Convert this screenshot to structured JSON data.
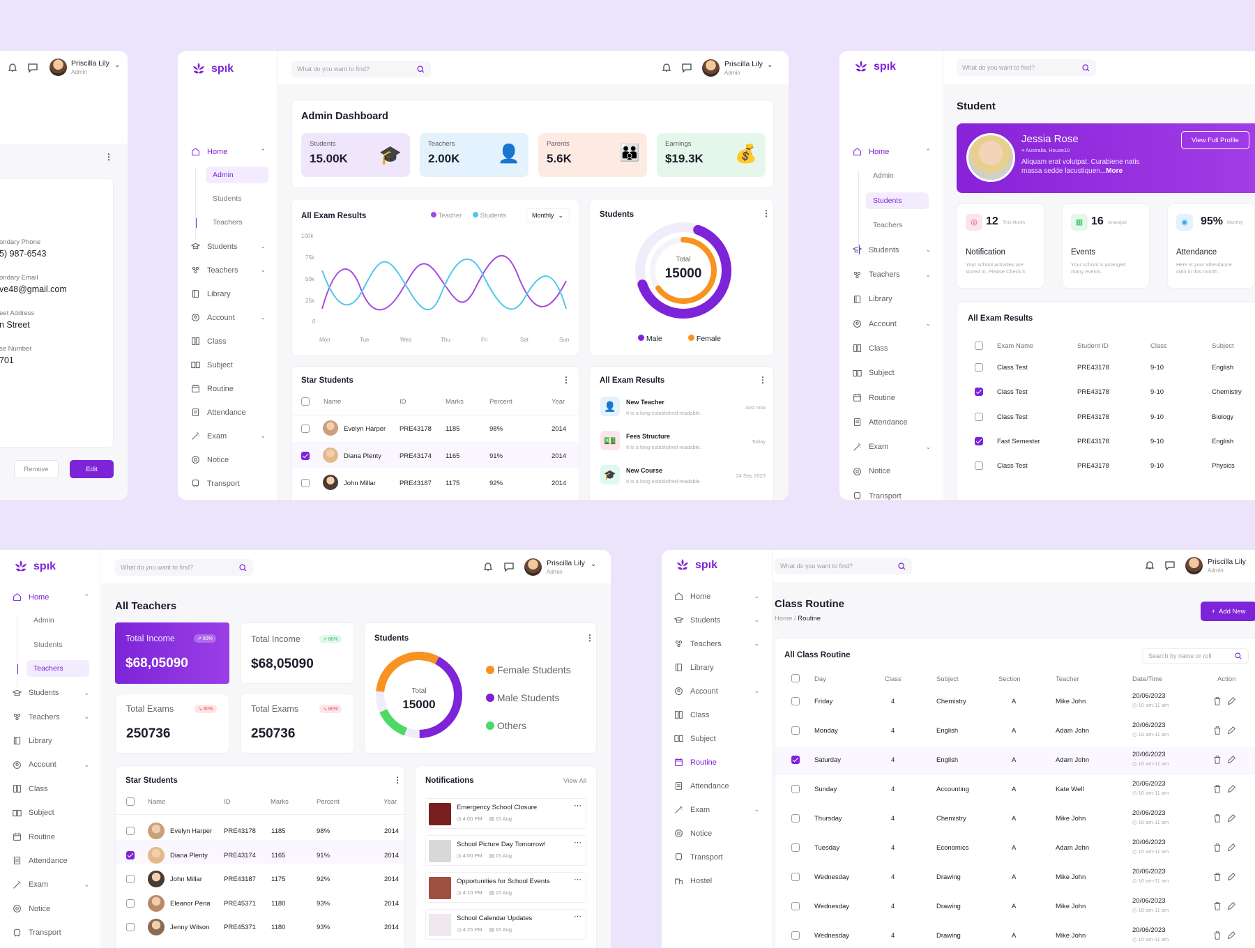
{
  "brand": "spık",
  "search_placeholder": "What do you want to find?",
  "user": {
    "name": "Priscilla Lily",
    "role": "Admin"
  },
  "nav": {
    "home": "Home",
    "admin": "Admin",
    "students": "Students",
    "teachers": "Teachers",
    "library": "Library",
    "account": "Account",
    "class": "Class",
    "subject": "Subject",
    "routine": "Routine",
    "attendance": "Attendance",
    "exam": "Exam",
    "notice": "Notice",
    "transport": "Transport",
    "hostel": "Hostel"
  },
  "profile_partial": {
    "phone_label": "ondary Phone",
    "phone": "5) 987-6543",
    "email_label": "ondary Email",
    "email": "ve48@gmail.com",
    "street_label": "eet Address",
    "street": "n Street",
    "house_label": "se Number",
    "house": "701",
    "remove": "Remove",
    "edit": "Edit"
  },
  "admin_dashboard": {
    "title": "Admin Dashboard",
    "stats": [
      {
        "label": "Students",
        "value": "15.00K",
        "color": "#efe6fb"
      },
      {
        "label": "Teachers",
        "value": "2.00K",
        "color": "#e3f2fc"
      },
      {
        "label": "Parents",
        "value": "5.6K",
        "color": "#fdebe3"
      },
      {
        "label": "Earnings",
        "value": "$19.3K",
        "color": "#e5f7ea"
      }
    ],
    "exam_results": {
      "title": "All Exam Results",
      "legend": [
        "Teacher",
        "Students"
      ],
      "period": "Monthly",
      "y_ticks": [
        "100k",
        "75k",
        "50k",
        "25k",
        "0"
      ],
      "x_ticks": [
        "Mon",
        "Tue",
        "Wed",
        "Thu",
        "Fri",
        "Sat",
        "Sun"
      ]
    },
    "students_donut": {
      "title": "Students",
      "total_label": "Total",
      "total": "15000",
      "legend": [
        "Male",
        "Female"
      ]
    },
    "star_students": {
      "title": "Star Students",
      "headers": [
        "Name",
        "ID",
        "Marks",
        "Percent",
        "Year"
      ],
      "rows": [
        {
          "name": "Evelyn Harper",
          "id": "PRE43178",
          "marks": "1185",
          "percent": "98%",
          "year": "2014",
          "checked": false
        },
        {
          "name": "Diana Plenty",
          "id": "PRE43174",
          "marks": "1165",
          "percent": "91%",
          "year": "2014",
          "checked": true
        },
        {
          "name": "John Millar",
          "id": "PRE43187",
          "marks": "1175",
          "percent": "92%",
          "year": "2014",
          "checked": false
        }
      ]
    },
    "notifications": {
      "title": "All Exam Results",
      "items": [
        {
          "title": "New Teacher",
          "sub": "It is a long established readable.",
          "time": "Just now"
        },
        {
          "title": "Fees Structure",
          "sub": "It is a long established readable.",
          "time": "Today"
        },
        {
          "title": "New Course",
          "sub": "It is a long established readable.",
          "time": "24 Sep 2023"
        }
      ]
    }
  },
  "student_page": {
    "title": "Student",
    "hero": {
      "name": "Jessia Rose",
      "location": "Australia, House10",
      "bio1": "Aliquam erat volutpat. Curabiene natis",
      "bio2": "massa sedde lacustiquen...",
      "more": "More",
      "button": "View Full Profile"
    },
    "cards": [
      {
        "num": "12",
        "tag": "This Month",
        "title": "Notification",
        "desc1": "Your school activities are",
        "desc2": "stored in. Please Check it."
      },
      {
        "num": "16",
        "tag": "Arranged",
        "title": "Events",
        "desc1": "Your school is arranged",
        "desc2": "many events."
      },
      {
        "num": "95%",
        "tag": "Monthly",
        "title": "Attendance",
        "desc1": "Here is your attendance",
        "desc2": "ratio in this month."
      }
    ],
    "results": {
      "title": "All Exam Results",
      "headers": [
        "Exam Name",
        "Student ID",
        "Class",
        "Subject"
      ],
      "rows": [
        {
          "exam": "Class Test",
          "id": "PRE43178",
          "class": "9-10",
          "subject": "English",
          "checked": false
        },
        {
          "exam": "Class Test",
          "id": "PRE43178",
          "class": "9-10",
          "subject": "Chemistry",
          "checked": true
        },
        {
          "exam": "Class Test",
          "id": "PRE43178",
          "class": "9-10",
          "subject": "Biology",
          "checked": false
        },
        {
          "exam": "Fast Semester",
          "id": "PRE43178",
          "class": "9-10",
          "subject": "English",
          "checked": true
        },
        {
          "exam": "Class Test",
          "id": "PRE43178",
          "class": "9-10",
          "subject": "Physics",
          "checked": false
        }
      ]
    }
  },
  "teachers_page": {
    "title": "All Teachers",
    "income": [
      {
        "label": "Total Income",
        "badge": "80%",
        "value": "$68,05090"
      },
      {
        "label": "Total Income",
        "badge": "80%",
        "value": "$68,05090"
      }
    ],
    "exams": [
      {
        "label": "Total Exams",
        "badge": "80%",
        "value": "250736"
      },
      {
        "label": "Total Exams",
        "badge": "80%",
        "value": "250736"
      }
    ],
    "donut": {
      "title": "Students",
      "total_label": "Total",
      "total": "15000",
      "legend": [
        "Female Students",
        "Male Students",
        "Others"
      ]
    },
    "star_students": {
      "title": "Star Students",
      "headers": [
        "Name",
        "ID",
        "Marks",
        "Percent",
        "Year"
      ],
      "rows": [
        {
          "name": "Evelyn Harper",
          "id": "PRE43178",
          "marks": "1185",
          "percent": "98%",
          "year": "2014",
          "checked": false
        },
        {
          "name": "Diana Plenty",
          "id": "PRE43174",
          "marks": "1165",
          "percent": "91%",
          "year": "2014",
          "checked": true
        },
        {
          "name": "John Millar",
          "id": "PRE43187",
          "marks": "1175",
          "percent": "92%",
          "year": "2014",
          "checked": false
        },
        {
          "name": "Eleanor Pena",
          "id": "PRE45371",
          "marks": "1180",
          "percent": "93%",
          "year": "2014",
          "checked": false
        },
        {
          "name": "Jenny Wilson",
          "id": "PRE45371",
          "marks": "1180",
          "percent": "93%",
          "year": "2014",
          "checked": false
        }
      ]
    },
    "notifications": {
      "title": "Notifications",
      "view_all": "View All",
      "items": [
        {
          "title": "Emergency School Closure",
          "time": "4:00 PM",
          "date": "15 Aug"
        },
        {
          "title": "School Picture Day Tomorrow!",
          "time": "4:00 PM",
          "date": "15 Aug"
        },
        {
          "title": "Opportunities for School Events",
          "time": "4:10 PM",
          "date": "15 Aug"
        },
        {
          "title": "School Calendar Updates",
          "time": "4:25 PM",
          "date": "15 Aug"
        }
      ]
    }
  },
  "routine_page": {
    "title": "Class Routine",
    "breadcrumb": [
      "Home",
      "/",
      "Routine"
    ],
    "add_new": "Add New",
    "table_title": "All Class Routine",
    "search_placeholder": "Search by name or roll",
    "headers": [
      "Day",
      "Class",
      "Subject",
      "Section",
      "Teacher",
      "Date/Time",
      "Action"
    ],
    "rows": [
      {
        "day": "Friday",
        "class": "4",
        "subject": "Chemistry",
        "section": "A",
        "teacher": "Mike John",
        "date": "20/06/2023",
        "time": "10 am-11 am",
        "checked": false
      },
      {
        "day": "Monday",
        "class": "4",
        "subject": "English",
        "section": "A",
        "teacher": "Adam John",
        "date": "20/06/2023",
        "time": "10 am-11 am",
        "checked": false
      },
      {
        "day": "Saturday",
        "class": "4",
        "subject": "English",
        "section": "A",
        "teacher": "Adam John",
        "date": "20/06/2023",
        "time": "10 am-11 am",
        "checked": true
      },
      {
        "day": "Sunday",
        "class": "4",
        "subject": "Accounting",
        "section": "A",
        "teacher": "Kate Well",
        "date": "20/06/2023",
        "time": "10 am-11 am",
        "checked": false
      },
      {
        "day": "Thursday",
        "class": "4",
        "subject": "Chemistry",
        "section": "A",
        "teacher": "Mike John",
        "date": "20/06/2023",
        "time": "10 am-11 am",
        "checked": false
      },
      {
        "day": "Tuesday",
        "class": "4",
        "subject": "Economics",
        "section": "A",
        "teacher": "Adam John",
        "date": "20/06/2023",
        "time": "10 am-11 am",
        "checked": false
      },
      {
        "day": "Wednesday",
        "class": "4",
        "subject": "Drawing",
        "section": "A",
        "teacher": "Mike John",
        "date": "20/06/2023",
        "time": "10 am-11 am",
        "checked": false
      },
      {
        "day": "Wednesday",
        "class": "4",
        "subject": "Drawing",
        "section": "A",
        "teacher": "Mike John",
        "date": "20/06/2023",
        "time": "10 am-11 am",
        "checked": false
      },
      {
        "day": "Wednesday",
        "class": "4",
        "subject": "Drawing",
        "section": "A",
        "teacher": "Mike John",
        "date": "20/06/2023",
        "time": "10 am-11 am",
        "checked": false
      }
    ]
  },
  "colors": {
    "accent": "#7d24d8",
    "bg": "#ece4fb",
    "orange": "#f7931e",
    "cyan": "#39c0ea",
    "green": "#4cd964"
  }
}
